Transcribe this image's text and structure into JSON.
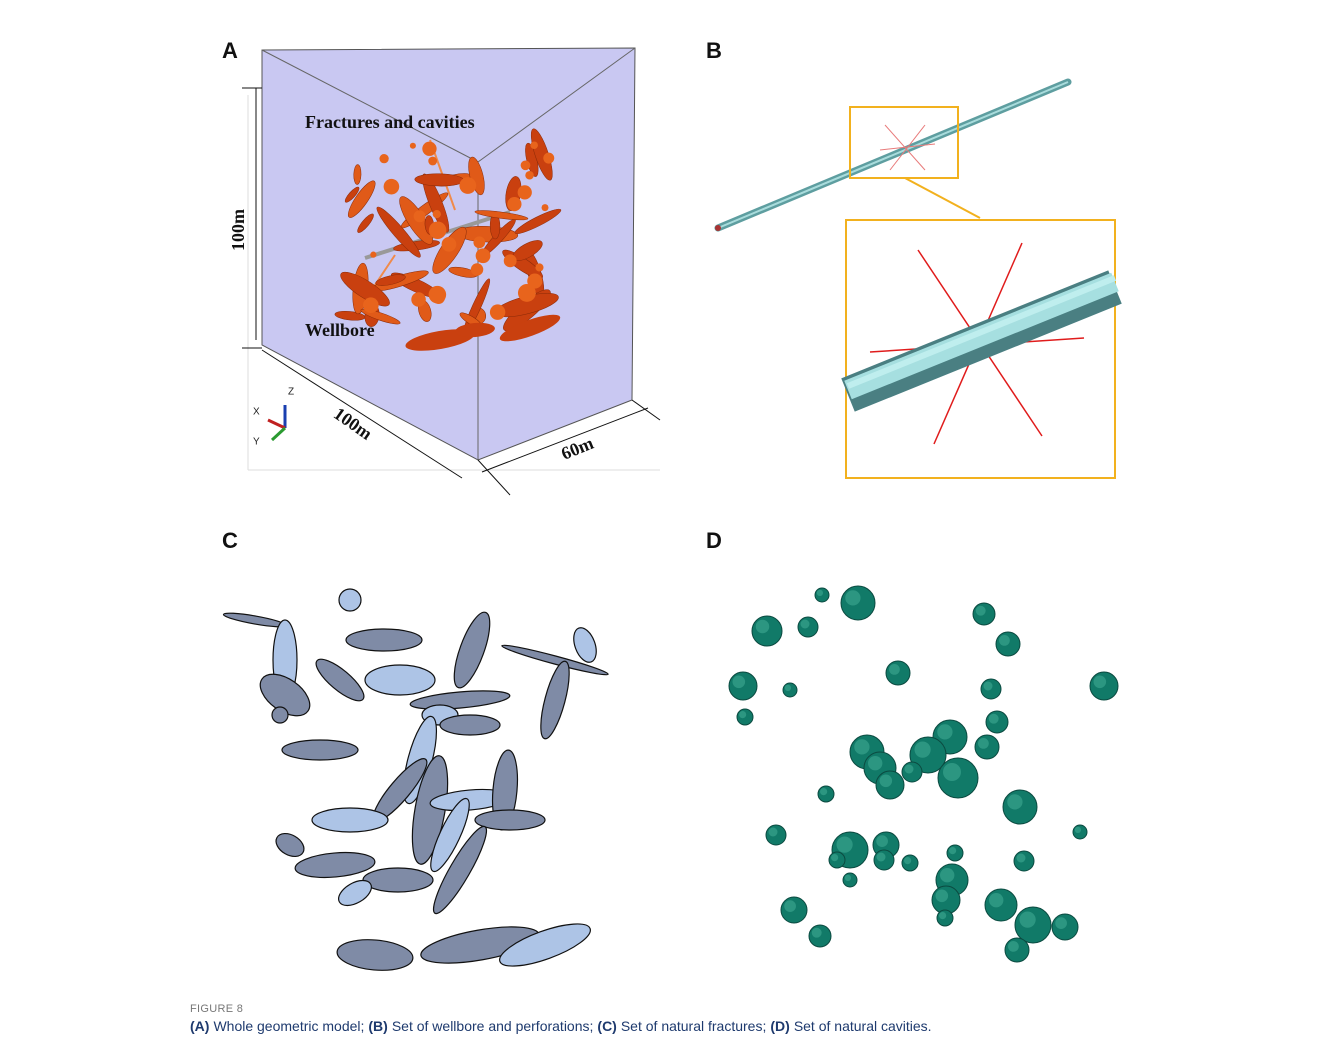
{
  "panels": [
    {
      "label": "A",
      "annotations": [
        "Fractures and cavities",
        "Wellbore"
      ],
      "dimensions": [
        "100m",
        "100m",
        "60m"
      ],
      "axes": [
        "X",
        "Y",
        "Z"
      ]
    },
    {
      "label": "B"
    },
    {
      "label": "C"
    },
    {
      "label": "D"
    }
  ],
  "caption": {
    "figure": "FIGURE 8",
    "items": [
      {
        "tag": "(A)",
        "text": "Whole geometric model;"
      },
      {
        "tag": "(B)",
        "text": "Set of wellbore and perforations;"
      },
      {
        "tag": "(C)",
        "text": "Set of natural fractures;"
      },
      {
        "tag": "(D)",
        "text": "Set of natural cavities."
      }
    ]
  }
}
